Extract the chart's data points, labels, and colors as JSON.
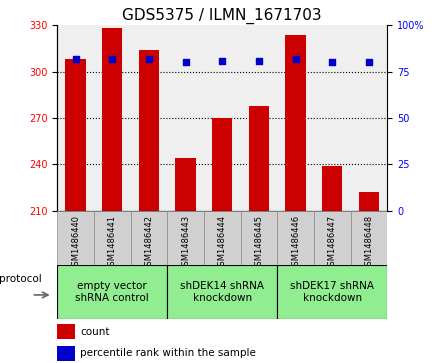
{
  "title": "GDS5375 / ILMN_1671703",
  "samples": [
    "GSM1486440",
    "GSM1486441",
    "GSM1486442",
    "GSM1486443",
    "GSM1486444",
    "GSM1486445",
    "GSM1486446",
    "GSM1486447",
    "GSM1486448"
  ],
  "counts": [
    308,
    328,
    314,
    244,
    270,
    278,
    324,
    239,
    222
  ],
  "percentiles": [
    82,
    82,
    82,
    80,
    81,
    81,
    82,
    80,
    80
  ],
  "ylim_left": [
    210,
    330
  ],
  "ylim_right": [
    0,
    100
  ],
  "yticks_left": [
    210,
    240,
    270,
    300,
    330
  ],
  "yticks_right": [
    0,
    25,
    50,
    75,
    100
  ],
  "bar_color": "#cc0000",
  "dot_color": "#0000cc",
  "bg_color": "#ffffff",
  "groups": [
    {
      "label": "empty vector\nshRNA control",
      "start": 0,
      "end": 3,
      "color": "#90ee90"
    },
    {
      "label": "shDEK14 shRNA\nknockdown",
      "start": 3,
      "end": 6,
      "color": "#90ee90"
    },
    {
      "label": "shDEK17 shRNA\nknockdown",
      "start": 6,
      "end": 9,
      "color": "#90ee90"
    }
  ],
  "protocol_label": "protocol",
  "legend_count_label": "count",
  "legend_pct_label": "percentile rank within the sample",
  "title_fontsize": 11,
  "tick_fontsize": 7,
  "sample_fontsize": 6,
  "group_fontsize": 7.5
}
